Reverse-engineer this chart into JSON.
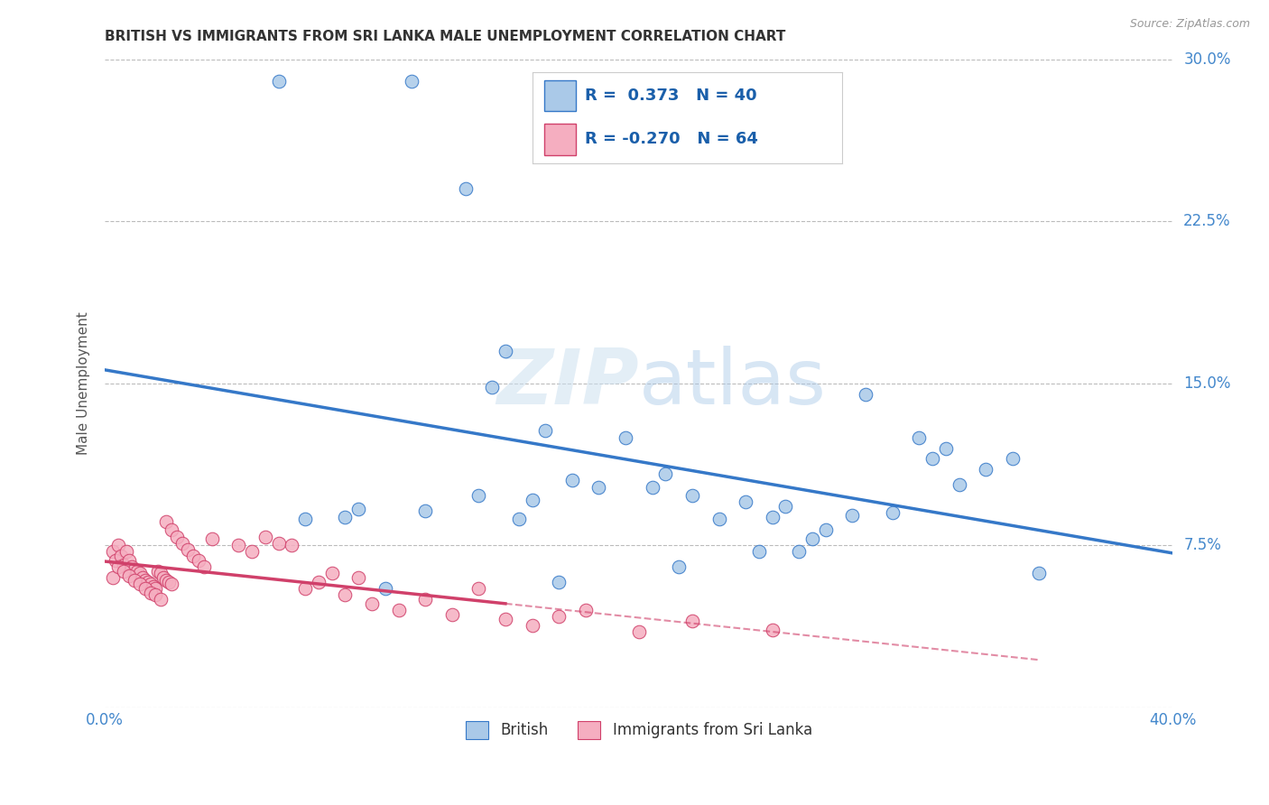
{
  "title": "BRITISH VS IMMIGRANTS FROM SRI LANKA MALE UNEMPLOYMENT CORRELATION CHART",
  "source": "Source: ZipAtlas.com",
  "ylabel": "Male Unemployment",
  "watermark": "ZIPatlas",
  "xlim": [
    0.0,
    0.4
  ],
  "ylim": [
    0.0,
    0.3
  ],
  "xticks": [
    0.0,
    0.1,
    0.2,
    0.3,
    0.4
  ],
  "yticks": [
    0.0,
    0.075,
    0.15,
    0.225,
    0.3
  ],
  "ytick_labels_right": [
    "30.0%",
    "22.5%",
    "15.0%",
    "7.5%",
    ""
  ],
  "xtick_labels": [
    "0.0%",
    "",
    "",
    "",
    "40.0%"
  ],
  "british_R": 0.373,
  "british_N": 40,
  "srilanka_R": -0.27,
  "srilanka_N": 64,
  "british_color": "#aac9e8",
  "british_line_color": "#3578c8",
  "srilanka_color": "#f5aec0",
  "srilanka_line_color": "#d0406a",
  "grid_color": "#bbbbbb",
  "background_color": "#ffffff",
  "british_scatter_x": [
    0.065,
    0.115,
    0.075,
    0.09,
    0.095,
    0.12,
    0.14,
    0.155,
    0.16,
    0.175,
    0.185,
    0.21,
    0.22,
    0.23,
    0.24,
    0.25,
    0.255,
    0.27,
    0.28,
    0.295,
    0.31,
    0.32,
    0.33,
    0.135,
    0.145,
    0.165,
    0.195,
    0.205,
    0.245,
    0.265,
    0.285,
    0.305,
    0.315,
    0.34,
    0.105,
    0.17,
    0.215,
    0.26,
    0.35,
    0.15
  ],
  "british_scatter_y": [
    0.29,
    0.29,
    0.087,
    0.088,
    0.092,
    0.091,
    0.098,
    0.087,
    0.096,
    0.105,
    0.102,
    0.108,
    0.098,
    0.087,
    0.095,
    0.088,
    0.093,
    0.082,
    0.089,
    0.09,
    0.115,
    0.103,
    0.11,
    0.24,
    0.148,
    0.128,
    0.125,
    0.102,
    0.072,
    0.078,
    0.145,
    0.125,
    0.12,
    0.115,
    0.055,
    0.058,
    0.065,
    0.072,
    0.062,
    0.165
  ],
  "srilanka_scatter_x": [
    0.003,
    0.004,
    0.005,
    0.006,
    0.007,
    0.008,
    0.009,
    0.01,
    0.011,
    0.012,
    0.013,
    0.014,
    0.015,
    0.016,
    0.017,
    0.018,
    0.019,
    0.02,
    0.021,
    0.022,
    0.023,
    0.024,
    0.025,
    0.003,
    0.005,
    0.007,
    0.009,
    0.011,
    0.013,
    0.015,
    0.017,
    0.019,
    0.021,
    0.023,
    0.025,
    0.027,
    0.029,
    0.031,
    0.033,
    0.035,
    0.037,
    0.04,
    0.05,
    0.055,
    0.06,
    0.065,
    0.07,
    0.075,
    0.08,
    0.085,
    0.09,
    0.095,
    0.1,
    0.11,
    0.12,
    0.13,
    0.14,
    0.15,
    0.16,
    0.17,
    0.18,
    0.2,
    0.22,
    0.25
  ],
  "srilanka_scatter_y": [
    0.072,
    0.068,
    0.075,
    0.07,
    0.066,
    0.072,
    0.068,
    0.065,
    0.064,
    0.063,
    0.062,
    0.06,
    0.059,
    0.058,
    0.057,
    0.056,
    0.055,
    0.063,
    0.062,
    0.06,
    0.059,
    0.058,
    0.057,
    0.06,
    0.065,
    0.063,
    0.061,
    0.059,
    0.057,
    0.055,
    0.053,
    0.052,
    0.05,
    0.086,
    0.082,
    0.079,
    0.076,
    0.073,
    0.07,
    0.068,
    0.065,
    0.078,
    0.075,
    0.072,
    0.079,
    0.076,
    0.075,
    0.055,
    0.058,
    0.062,
    0.052,
    0.06,
    0.048,
    0.045,
    0.05,
    0.043,
    0.055,
    0.041,
    0.038,
    0.042,
    0.045,
    0.035,
    0.04,
    0.036
  ],
  "title_fontsize": 11,
  "axis_label_fontsize": 11,
  "tick_fontsize": 12,
  "legend_fontsize": 13
}
